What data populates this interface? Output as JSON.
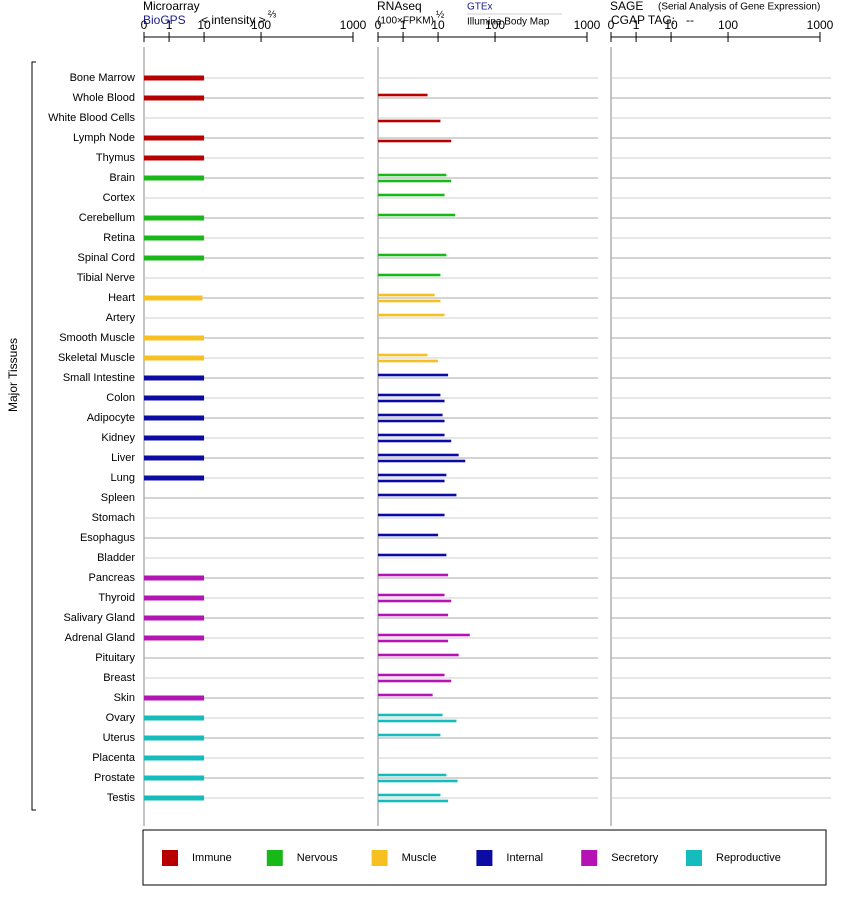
{
  "chart_data": {
    "type": "bar",
    "y_label": "Major Tissues",
    "groups": [
      {
        "name": "Immune",
        "color": "#b80000",
        "categories": [
          "Bone Marrow",
          "Whole Blood",
          "White Blood Cells",
          "Lymph Node",
          "Thymus"
        ]
      },
      {
        "name": "Nervous",
        "color": "#18b818",
        "categories": [
          "Brain",
          "Cortex",
          "Cerebellum",
          "Retina",
          "Spinal Cord",
          "Tibial Nerve"
        ]
      },
      {
        "name": "Muscle",
        "color": "#f5c020",
        "categories": [
          "Heart",
          "Artery",
          "Smooth Muscle",
          "Skeletal Muscle"
        ]
      },
      {
        "name": "Internal",
        "color": "#0c0ca4",
        "categories": [
          "Small Intestine",
          "Colon",
          "Adipocyte",
          "Kidney",
          "Liver",
          "Lung",
          "Spleen",
          "Stomach",
          "Esophagus",
          "Bladder"
        ]
      },
      {
        "name": "Secretory",
        "color": "#b414b4",
        "categories": [
          "Pancreas",
          "Thyroid",
          "Salivary Gland",
          "Adrenal Gland",
          "Pituitary",
          "Breast",
          "Skin"
        ]
      },
      {
        "name": "Reproductive",
        "color": "#14bcbc",
        "categories": [
          "Ovary",
          "Uterus",
          "Placenta",
          "Prostate",
          "Testis"
        ]
      }
    ],
    "panels": [
      {
        "title": "Microarray",
        "unit": "< intensity >",
        "unit_power": "⅔",
        "xlim": [
          0,
          1000
        ],
        "xticks": [
          0,
          1,
          10,
          100,
          1000
        ],
        "series": [
          {
            "name": "BioGPS",
            "values": [
              10,
              10,
              null,
              10,
              10,
              10,
              null,
              10,
              10,
              10,
              null,
              9,
              null,
              10,
              10,
              10,
              10,
              10,
              10,
              10,
              10,
              null,
              null,
              null,
              null,
              10,
              10,
              10,
              10,
              null,
              null,
              10,
              10,
              10,
              10,
              10,
              10
            ]
          }
        ]
      },
      {
        "title": "RNAseq",
        "unit": "(100×FPKM)",
        "unit_power": "½",
        "xlim": [
          0,
          1000
        ],
        "xticks": [
          0,
          1,
          10,
          100,
          1000
        ],
        "series": [
          {
            "name": "GTEx",
            "values": [
              null,
              5,
              null,
              null,
              null,
              14,
              13,
              20,
              null,
              14,
              11,
              8,
              13,
              null,
              5,
              15,
              11,
              12,
              13,
              23,
              14,
              21,
              13,
              10,
              14,
              15,
              13,
              15,
              36,
              23,
              13,
              7,
              12,
              11,
              null,
              14,
              11
            ]
          },
          {
            "name": "Illumina Body Map",
            "values": [
              null,
              null,
              11,
              17,
              null,
              17,
              null,
              null,
              null,
              null,
              null,
              11,
              null,
              null,
              10,
              null,
              13,
              13,
              17,
              30,
              13,
              null,
              null,
              null,
              null,
              null,
              17,
              null,
              15,
              null,
              17,
              null,
              21,
              null,
              null,
              22,
              15
            ]
          }
        ]
      },
      {
        "title": "SAGE",
        "subtitle": "(Serial Analysis of Gene Expression)",
        "tag_label": "CGAP TAG:",
        "tag": "--",
        "xlim": [
          0,
          1000
        ],
        "xticks": [
          0,
          1,
          10,
          100,
          1000
        ],
        "series": []
      }
    ]
  }
}
